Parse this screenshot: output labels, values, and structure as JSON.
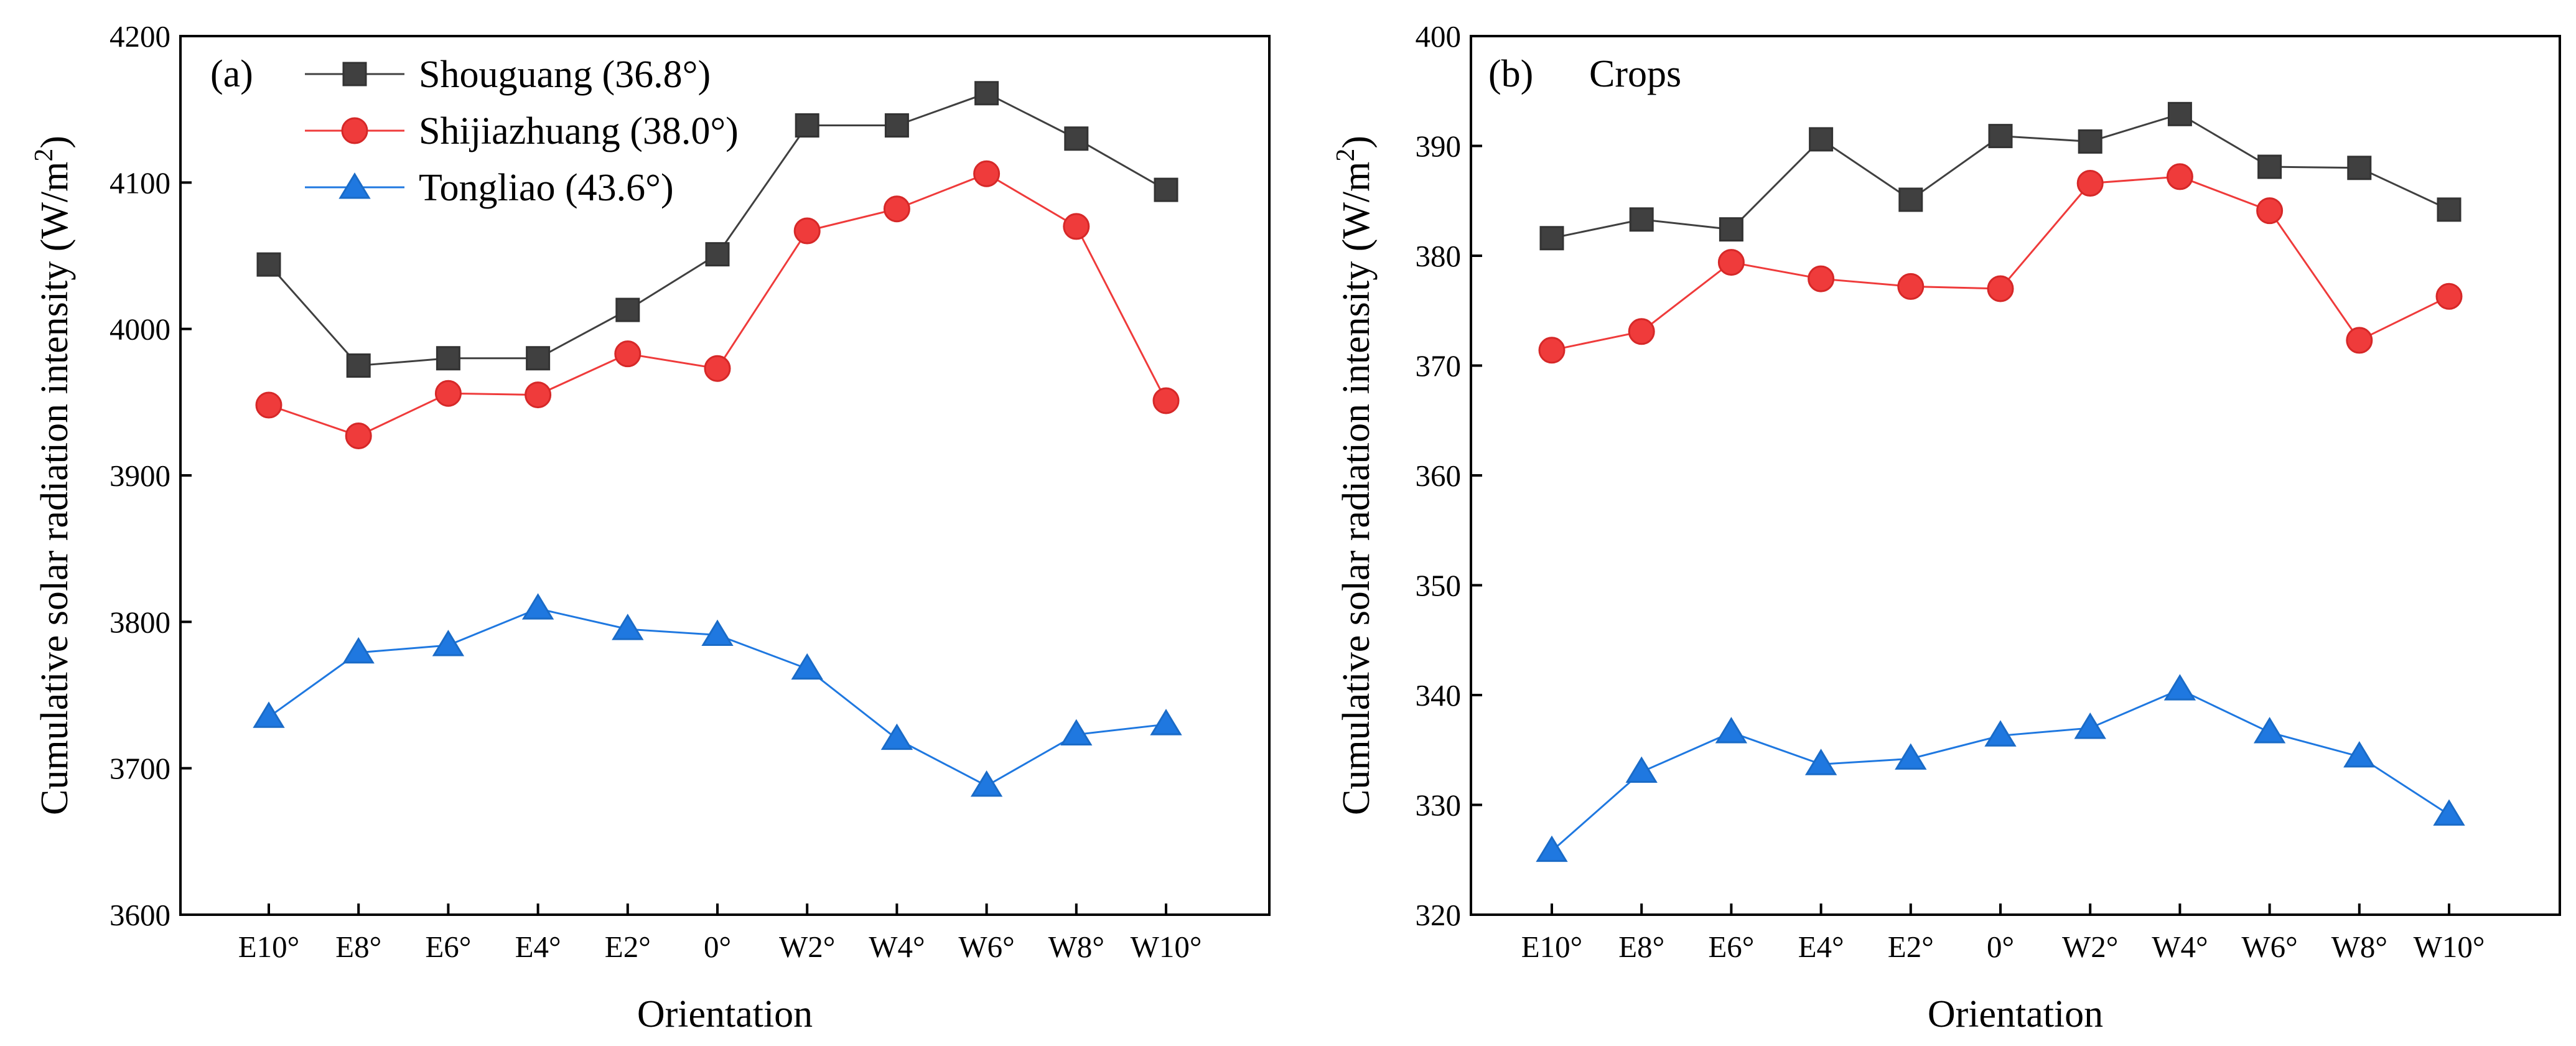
{
  "chart_data": [
    {
      "type": "line",
      "panel_label": "(a)",
      "subtitle": "",
      "xlabel": "Orientation",
      "ylabel": "Cumulative solar radiation intensity (W/m²)",
      "ylabel_main": "Cumulative solar radiation intensity (W/m",
      "ylabel_sup": "2",
      "ylabel_close": ")",
      "categories": [
        "E10°",
        "E8°",
        "E6°",
        "E4°",
        "E2°",
        "0°",
        "W2°",
        "W4°",
        "W6°",
        "W8°",
        "W10°"
      ],
      "ylim": [
        3600,
        4200
      ],
      "yticks": [
        3600,
        3700,
        3800,
        3900,
        4000,
        4100,
        4200
      ],
      "grid": false,
      "legend_position": "top-left",
      "series": [
        {
          "name": "Shouguang (36.8°)",
          "color": "#404040",
          "marker": "square",
          "values": [
            4044,
            3975,
            3980,
            3980,
            4013,
            4051,
            4139,
            4139,
            4161,
            4130,
            4095
          ]
        },
        {
          "name": "Shijiazhuang (38.0°)",
          "color": "#ef3b3b",
          "marker": "circle",
          "values": [
            3948,
            3927,
            3956,
            3955,
            3983,
            3973,
            4067,
            4082,
            4106,
            4070,
            3951
          ]
        },
        {
          "name": "Tongliao (43.6°)",
          "color": "#1f78e0",
          "marker": "triangle",
          "values": [
            3735,
            3779,
            3784,
            3809,
            3795,
            3791,
            3768,
            3720,
            3688,
            3723,
            3730
          ]
        }
      ]
    },
    {
      "type": "line",
      "panel_label": "(b)",
      "subtitle": "Crops",
      "xlabel": "Orientation",
      "ylabel": "Cumulative solar radiation intensity (W/m²)",
      "ylabel_main": "Cumulative solar radiation intensity (W/m",
      "ylabel_sup": "2",
      "ylabel_close": ")",
      "categories": [
        "E10°",
        "E8°",
        "E6°",
        "E4°",
        "E2°",
        "0°",
        "W2°",
        "W4°",
        "W6°",
        "W8°",
        "W10°"
      ],
      "ylim": [
        320,
        400
      ],
      "yticks": [
        320,
        330,
        340,
        350,
        360,
        370,
        380,
        390,
        400
      ],
      "grid": false,
      "legend_position": "none",
      "series": [
        {
          "name": "Shouguang (36.8°)",
          "color": "#404040",
          "marker": "square",
          "values": [
            381.6,
            383.3,
            382.4,
            390.6,
            385.1,
            390.9,
            390.4,
            392.9,
            388.1,
            388.0,
            384.2
          ]
        },
        {
          "name": "Shijiazhuang (38.0°)",
          "color": "#ef3b3b",
          "marker": "circle",
          "values": [
            371.4,
            373.1,
            379.4,
            377.9,
            377.2,
            377.0,
            386.6,
            387.2,
            384.1,
            372.3,
            376.3
          ]
        },
        {
          "name": "Tongliao (43.6°)",
          "color": "#1f78e0",
          "marker": "triangle",
          "values": [
            325.8,
            333.0,
            336.6,
            333.7,
            334.2,
            336.3,
            337.0,
            340.5,
            336.6,
            334.4,
            329.1
          ]
        }
      ]
    }
  ]
}
